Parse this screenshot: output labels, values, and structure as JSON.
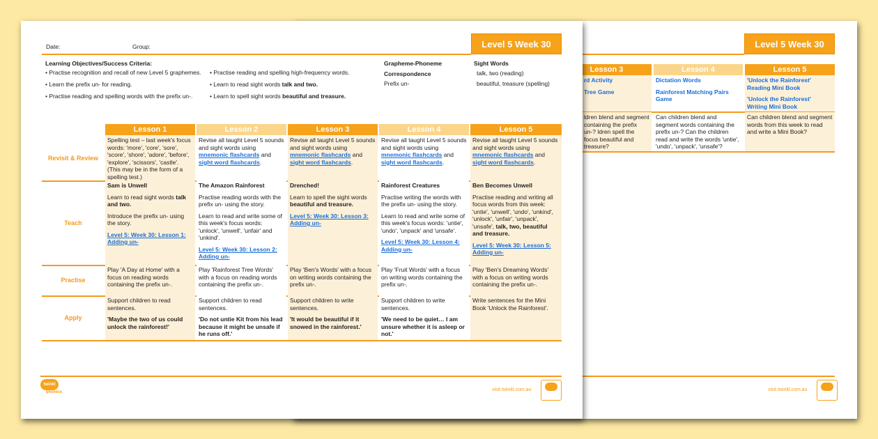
{
  "header": {
    "date_label": "Date:",
    "group_label": "Group:",
    "level_title": "Level 5 Week 30"
  },
  "objectives": {
    "title": "Learning Objectives/Success Criteria:",
    "col1": [
      "Practise recognition and recall of new Level 5 graphemes.",
      "Learn the prefix un- for reading.",
      "Practise reading and spelling words with the prefix un-."
    ],
    "col2": [
      [
        {
          "t": "Practise reading and spelling high-frequency words."
        }
      ],
      [
        {
          "t": "Learn to read sight words "
        },
        {
          "b": "talk and two."
        }
      ],
      [
        {
          "t": "Learn to spell sight words  "
        },
        {
          "b": "beautiful and treasure."
        }
      ]
    ]
  },
  "gpc": {
    "title1": "Grapheme-Phoneme",
    "title2": "Correspondence",
    "value": "Prefix un-"
  },
  "sight_words": {
    "title": "Sight Words",
    "reading": "talk, two (reading)",
    "spelling": "beautiful, treasure (spelling)"
  },
  "lessons": [
    "Lesson 1",
    "Lesson 2",
    "Lesson 3",
    "Lesson 4",
    "Lesson 5"
  ],
  "rows": [
    {
      "label": "Revisit & Review",
      "cells": [
        [
          [
            {
              "t": "Spelling test – last week's focus words: 'more', 'core', 'sore', 'score', 'shore', 'adore', 'before', 'explore', 'scissors', 'castle'. (This may be in the form of a spelling test.)"
            }
          ]
        ],
        [
          [
            {
              "t": "Revise all taught Level 5 sounds and sight words using "
            },
            {
              "a": "mnemonic flashcards"
            },
            {
              "t": " and "
            },
            {
              "a": "sight word flashcards"
            },
            {
              "t": "."
            }
          ]
        ],
        [
          [
            {
              "t": "Revise all taught Level 5 sounds and sight words using "
            },
            {
              "a": "mnemonic flashcards"
            },
            {
              "t": " and "
            },
            {
              "a": "sight word flashcards"
            },
            {
              "t": "."
            }
          ]
        ],
        [
          [
            {
              "t": "Revise all taught Level 5 sounds and sight words using "
            },
            {
              "a": "mnemonic flashcards"
            },
            {
              "t": " and "
            },
            {
              "a": "sight word flashcards"
            },
            {
              "t": "."
            }
          ]
        ],
        [
          [
            {
              "t": "Revise all taught Level 5 sounds and sight words using "
            },
            {
              "a": "mnemonic flashcards"
            },
            {
              "t": " and "
            },
            {
              "a": "sight word flashcards"
            },
            {
              "t": "."
            }
          ]
        ]
      ]
    },
    {
      "label": "Teach",
      "cells": [
        [
          [
            {
              "b": "Sam is Unwell"
            }
          ],
          [
            {
              "t": "Learn to read sight words "
            },
            {
              "b": "talk and two."
            }
          ],
          [
            {
              "t": "Introduce the prefix un- using the story."
            }
          ],
          [
            {
              "a": "Level 5: Week 30: Lesson 1: Adding un-"
            }
          ]
        ],
        [
          [
            {
              "b": "The Amazon Rainforest"
            }
          ],
          [
            {
              "t": "Practise reading words with the prefix un- using the story."
            }
          ],
          [
            {
              "t": "Learn to read and write some of this week's focus words: 'unlock', 'unwell', 'unfair' and 'unkind'."
            }
          ],
          [
            {
              "a": "Level 5: Week 30: Lesson 2: Adding un-"
            }
          ]
        ],
        [
          [
            {
              "b": "Drenched!"
            }
          ],
          [
            {
              "t": "Learn to spell the sight words "
            },
            {
              "b": "beautiful and treasure."
            }
          ],
          [
            {
              "a": "Level 5: Week 30: Lesson 3: Adding un-"
            }
          ]
        ],
        [
          [
            {
              "b": "Rainforest Creatures"
            }
          ],
          [
            {
              "t": "Practise writing the words with the prefix un- using the story."
            }
          ],
          [
            {
              "t": "Learn to read and write some of this week's focus words: 'untie', 'undo', 'unpack' and 'unsafe'."
            }
          ],
          [
            {
              "a": "Level 5: Week 30: Lesson 4: Adding un-"
            }
          ]
        ],
        [
          [
            {
              "b": "Ben Becomes Unwell"
            }
          ],
          [
            {
              "t": "Practise reading and writing all focus words from this week: 'untie', 'unwell', 'undo', 'unkind', 'unlock', 'unfair', 'unpack', 'unsafe', "
            },
            {
              "b": "talk, two, beautiful and treasure."
            }
          ],
          [
            {
              "a": "Level 5: Week 30: Lesson 5: Adding un-"
            }
          ]
        ]
      ]
    },
    {
      "label": "Practise",
      "cells": [
        [
          [
            {
              "t": "Play 'A Day at Home' with a focus on reading words containing the prefix un-."
            }
          ]
        ],
        [
          [
            {
              "t": "Play 'Rainforest Tree Words' with a focus on reading words containing the prefix un-."
            }
          ]
        ],
        [
          [
            {
              "t": "Play 'Ben's Words' with a focus on writing words containing the prefix un-."
            }
          ]
        ],
        [
          [
            {
              "t": "Play 'Fruit Words' with a focus on writing words containing the prefix un-."
            }
          ]
        ],
        [
          [
            {
              "t": "Play 'Ben's Dreaming Words' with a focus on writing words containing the prefix un-."
            }
          ]
        ]
      ]
    },
    {
      "label": "Apply",
      "cells": [
        [
          [
            {
              "t": "Support children to read sentences."
            }
          ],
          [
            {
              "b": "'Maybe the two of us could unlock the rainforest!'"
            }
          ]
        ],
        [
          [
            {
              "t": "Support children to read sentences."
            }
          ],
          [
            {
              "b": "'Do not untie Kit from his lead because it might be unsafe if he runs off.'"
            }
          ]
        ],
        [
          [
            {
              "t": "Support children to write sentences."
            }
          ],
          [
            {
              "b": "'It would be beautiful if it snowed in the rainforest.'"
            }
          ]
        ],
        [
          [
            {
              "t": "Support children to write sentences."
            }
          ],
          [
            {
              "b": "'We need to be quiet… I am unsure whether it is asleep or not.'"
            }
          ]
        ],
        [
          [
            {
              "t": "Write sentences for the Mini Book 'Unlock the Rainforest'."
            }
          ]
        ]
      ]
    }
  ],
  "footer": {
    "logo": "twinkl phonics",
    "url": "visit twinkl.com.au",
    "badge": "twinkl Quality Standard Approved"
  },
  "back_page": {
    "level_title": "Level 5 Week 30",
    "lessons": [
      "Lesson 3",
      "Lesson 4",
      "Lesson 5"
    ],
    "resources": [
      [
        "rd Activity",
        "Tree Game"
      ],
      [
        "Dictation Words",
        "Rainforest Matching Pairs Game"
      ],
      [
        "'Unlock the Rainforest' Reading Mini Book",
        "'Unlock the Rainforest' Writing Mini Book"
      ]
    ],
    "assessment": [
      "ldren blend and segment containing the prefix un-? ldren spell the focus beautiful and treasure?",
      "Can children blend and segment words containing the prefix un-? Can the children read and write the words 'untie', 'undo', 'unpack', 'unsafe'?",
      "Can children blend and segment words from this week to read and write a Mini Book?"
    ],
    "url": "visit twinkl.com.au"
  },
  "colors": {
    "accent": "#f6a21b",
    "accent_light": "#fbd58a",
    "cream": "#fdf0d8",
    "link": "#1a6fd6",
    "background": "#fde9a4"
  }
}
